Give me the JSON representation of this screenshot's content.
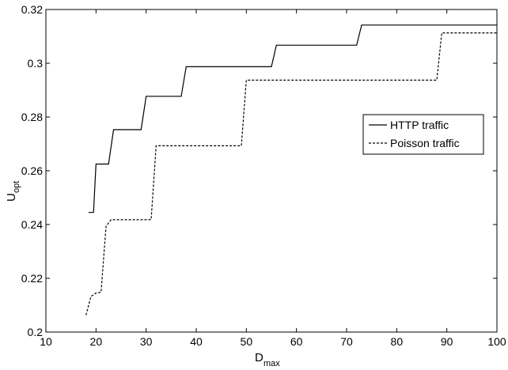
{
  "chart_data": {
    "type": "line",
    "title": "",
    "xlabel": {
      "main": "D",
      "sub": "max"
    },
    "ylabel": {
      "main": "U",
      "sub": "opt"
    },
    "xlim": [
      10,
      100
    ],
    "ylim": [
      0.2,
      0.32
    ],
    "xticks": [
      10,
      20,
      30,
      40,
      50,
      60,
      70,
      80,
      90,
      100
    ],
    "yticks": [
      0.2,
      0.22,
      0.24,
      0.26,
      0.28,
      0.3,
      0.32
    ],
    "ytick_labels": [
      "0.2",
      "0.22",
      "0.24",
      "0.26",
      "0.28",
      "0.3",
      "0.32"
    ],
    "grid": false,
    "legend_position": "right-center",
    "series": [
      {
        "name": "HTTP traffic",
        "style": "solid",
        "x": [
          18.5,
          19.5,
          20.0,
          22.5,
          23.5,
          29.0,
          30.0,
          37.0,
          38.0,
          55.0,
          56.0,
          72.0,
          73.0,
          100.0
        ],
        "y": [
          0.2445,
          0.2445,
          0.2625,
          0.2625,
          0.2753,
          0.2753,
          0.2877,
          0.2877,
          0.2987,
          0.2987,
          0.3067,
          0.3067,
          0.3142,
          0.3142
        ]
      },
      {
        "name": "Poisson traffic",
        "style": "dashed",
        "x": [
          18.0,
          19.0,
          20.0,
          21.0,
          22.0,
          23.0,
          31.0,
          32.0,
          49.0,
          50.0,
          88.0,
          89.0,
          100.0
        ],
        "y": [
          0.2063,
          0.2133,
          0.2145,
          0.2148,
          0.2393,
          0.2418,
          0.2418,
          0.2693,
          0.2693,
          0.2937,
          0.2937,
          0.3113,
          0.3113
        ]
      }
    ]
  }
}
